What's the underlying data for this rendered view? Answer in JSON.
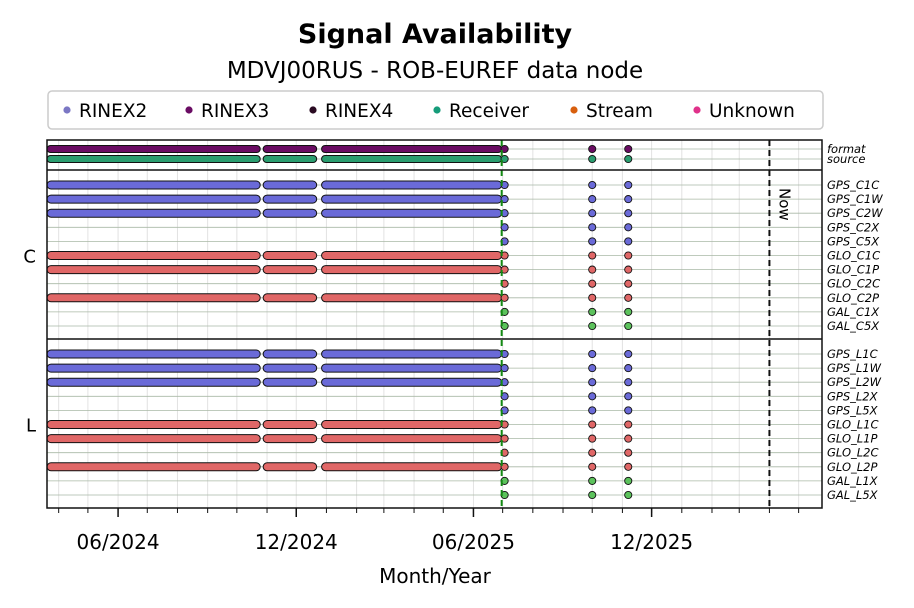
{
  "chart_data": {
    "type": "timeline",
    "title": "Signal Availability",
    "subtitle": "MDVJ00RUS - ROB-EUREF data node",
    "xlabel": "Month/Year",
    "x_ticks": [
      "06/2024",
      "12/2024",
      "06/2025",
      "12/2025"
    ],
    "x_tick_dates": [
      "2024-06-01",
      "2024-12-01",
      "2025-06-01",
      "2025-12-01"
    ],
    "xlim": [
      "2024-03-20",
      "2026-05-25"
    ],
    "now_label": "Now",
    "now_date": "2026-04-01",
    "marker_date": "2025-06-30",
    "legend": [
      {
        "name": "RINEX2",
        "color": "#7b77c4"
      },
      {
        "name": "RINEX3",
        "color": "#6a0c63"
      },
      {
        "name": "RINEX4",
        "color": "#2a0a22"
      },
      {
        "name": "Receiver",
        "color": "#169c7a"
      },
      {
        "name": "Stream",
        "color": "#d85f0e"
      },
      {
        "name": "Unknown",
        "color": "#e0318a"
      }
    ],
    "groups": [
      {
        "label": "",
        "rows": [
          {
            "name": "format",
            "color": "#6a0c63",
            "bar": true
          },
          {
            "name": "source",
            "color": "#2a9d6f",
            "bar": true
          }
        ]
      },
      {
        "label": "C",
        "rows": [
          {
            "name": "GPS_C1C",
            "color": "#6a6ad8",
            "bar": true
          },
          {
            "name": "GPS_C1W",
            "color": "#6a6ad8",
            "bar": true
          },
          {
            "name": "GPS_C2W",
            "color": "#6a6ad8",
            "bar": true
          },
          {
            "name": "GPS_C2X",
            "color": "#6a6ad8",
            "bar": false
          },
          {
            "name": "GPS_C5X",
            "color": "#6a6ad8",
            "bar": false
          },
          {
            "name": "GLO_C1C",
            "color": "#e06767",
            "bar": true
          },
          {
            "name": "GLO_C1P",
            "color": "#e06767",
            "bar": true
          },
          {
            "name": "GLO_C2C",
            "color": "#e06767",
            "bar": false
          },
          {
            "name": "GLO_C2P",
            "color": "#e06767",
            "bar": true
          },
          {
            "name": "GAL_C1X",
            "color": "#5cc25c",
            "bar": false
          },
          {
            "name": "GAL_C5X",
            "color": "#5cc25c",
            "bar": false
          }
        ]
      },
      {
        "label": "L",
        "rows": [
          {
            "name": "GPS_L1C",
            "color": "#6a6ad8",
            "bar": true
          },
          {
            "name": "GPS_L1W",
            "color": "#6a6ad8",
            "bar": true
          },
          {
            "name": "GPS_L2W",
            "color": "#6a6ad8",
            "bar": true
          },
          {
            "name": "GPS_L2X",
            "color": "#6a6ad8",
            "bar": false
          },
          {
            "name": "GPS_L5X",
            "color": "#6a6ad8",
            "bar": false
          },
          {
            "name": "GLO_L1C",
            "color": "#e06767",
            "bar": true
          },
          {
            "name": "GLO_L1P",
            "color": "#e06767",
            "bar": true
          },
          {
            "name": "GLO_L2C",
            "color": "#e06767",
            "bar": false
          },
          {
            "name": "GLO_L2P",
            "color": "#e06767",
            "bar": true
          },
          {
            "name": "GAL_L1X",
            "color": "#5cc25c",
            "bar": false
          },
          {
            "name": "GAL_L5X",
            "color": "#5cc25c",
            "bar": false
          }
        ]
      }
    ],
    "bar_segments": [
      {
        "start": "2024-03-20",
        "end": "2024-10-25"
      },
      {
        "start": "2024-10-28",
        "end": "2024-12-22"
      },
      {
        "start": "2024-12-27",
        "end": "2025-06-30"
      }
    ],
    "point_dates": [
      "2025-07-03",
      "2025-10-01",
      "2025-11-07"
    ]
  }
}
